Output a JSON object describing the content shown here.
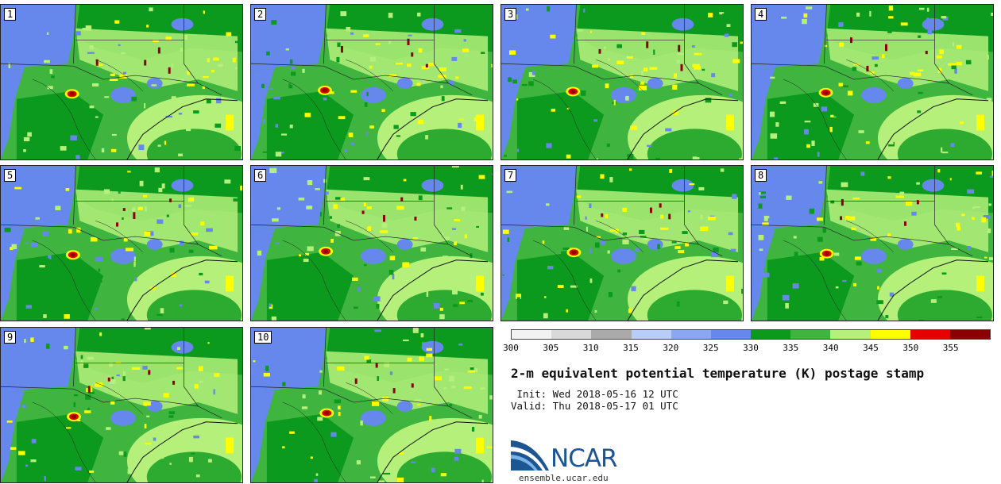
{
  "panels": [
    {
      "label": "1"
    },
    {
      "label": "2"
    },
    {
      "label": "3"
    },
    {
      "label": "4"
    },
    {
      "label": "5"
    },
    {
      "label": "6"
    },
    {
      "label": "7"
    },
    {
      "label": "8"
    },
    {
      "label": "9"
    },
    {
      "label": "10"
    }
  ],
  "colorbar": {
    "bins": [
      {
        "from": 300,
        "to": 305,
        "color": "#f2f2f2"
      },
      {
        "from": 305,
        "to": 310,
        "color": "#d9d9d9"
      },
      {
        "from": 310,
        "to": 315,
        "color": "#aaaaaa"
      },
      {
        "from": 315,
        "to": 320,
        "color": "#b8cdf7"
      },
      {
        "from": 320,
        "to": 325,
        "color": "#8aa8f2"
      },
      {
        "from": 325,
        "to": 330,
        "color": "#6687ec"
      },
      {
        "from": 330,
        "to": 335,
        "color": "#0b9a1e"
      },
      {
        "from": 335,
        "to": 340,
        "color": "#3fb53f"
      },
      {
        "from": 340,
        "to": 345,
        "color": "#b4f07a"
      },
      {
        "from": 345,
        "to": 350,
        "color": "#ffff00"
      },
      {
        "from": 350,
        "to": 355,
        "color": "#e60000"
      },
      {
        "from": 355,
        "to": 360,
        "color": "#8b0000"
      }
    ],
    "tick_labels": [
      "300",
      "305",
      "310",
      "315",
      "320",
      "325",
      "330",
      "335",
      "340",
      "345",
      "350",
      "355"
    ]
  },
  "title": "2-m equivalent potential temperature (K) postage stamp",
  "init": " Init: Wed 2018-05-16 12 UTC",
  "valid": "Valid: Thu 2018-05-17 01 UTC",
  "logo": {
    "text": "NCAR",
    "url": "ensemble.ucar.edu",
    "color": "#1c5591"
  }
}
